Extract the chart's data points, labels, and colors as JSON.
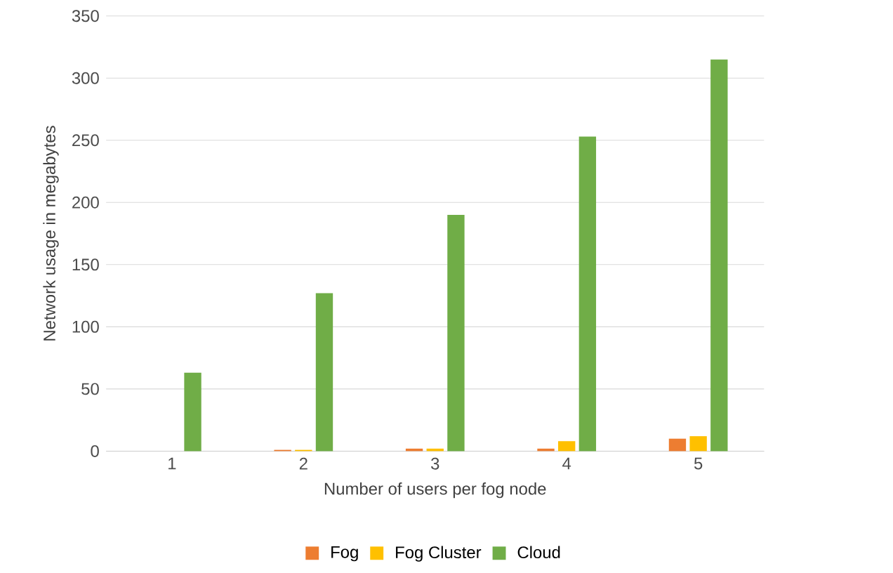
{
  "chart_data": {
    "type": "bar",
    "xlabel": "Number of users per fog node",
    "ylabel": "Network usage  in megabytes",
    "categories": [
      "1",
      "2",
      "3",
      "4",
      "5"
    ],
    "series": [
      {
        "name": "Fog",
        "color": "#ed7d31",
        "values": [
          0,
          1,
          2,
          2,
          10
        ]
      },
      {
        "name": "Fog Cluster",
        "color": "#ffc000",
        "values": [
          0,
          1,
          2,
          8,
          12
        ]
      },
      {
        "name": "Cloud",
        "color": "#70ad47",
        "values": [
          63,
          127,
          190,
          253,
          315
        ]
      }
    ],
    "ylim": [
      0,
      350
    ],
    "yticks": [
      0,
      50,
      100,
      150,
      200,
      250,
      300,
      350
    ],
    "grid": "y",
    "legend": "bottom"
  }
}
